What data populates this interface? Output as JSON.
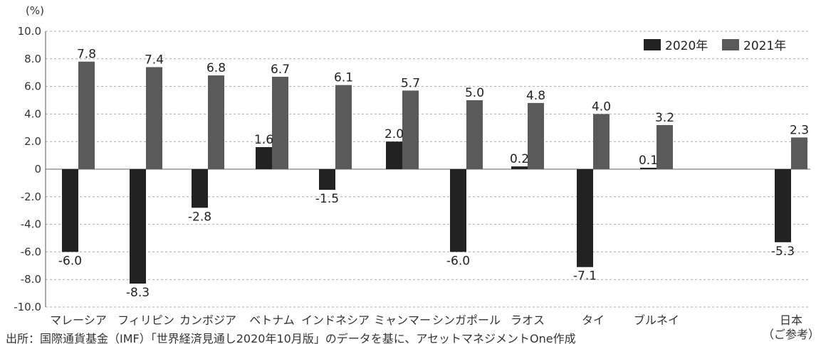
{
  "chart_data": {
    "type": "bar",
    "ylabel": "(%)",
    "ylim": [
      -10,
      10
    ],
    "yticks": [
      "10.0",
      "8.0",
      "6.0",
      "4.0",
      "2.0",
      "0",
      "-2.0",
      "-4.0",
      "-6.0",
      "-8.0",
      "-10.0"
    ],
    "yvalues": [
      10,
      8,
      6,
      4,
      2,
      0,
      -2,
      -4,
      -6,
      -8,
      -10
    ],
    "grid": true,
    "legend_position": "top-right",
    "categories": [
      {
        "label": "マレーシア",
        "sub": ""
      },
      {
        "label": "フィリピン",
        "sub": ""
      },
      {
        "label": "カンボジア",
        "sub": ""
      },
      {
        "label": "ベトナム",
        "sub": ""
      },
      {
        "label": "インドネシア",
        "sub": ""
      },
      {
        "label": "ミャンマー",
        "sub": ""
      },
      {
        "label": "シンガポール",
        "sub": ""
      },
      {
        "label": "ラオス",
        "sub": ""
      },
      {
        "label": "タイ",
        "sub": ""
      },
      {
        "label": "ブルネイ",
        "sub": ""
      },
      {
        "label": "日本",
        "sub": "（ご参考）"
      }
    ],
    "series": [
      {
        "name": "2020年",
        "color": "#222222",
        "values": [
          -6.0,
          -8.3,
          -2.8,
          1.6,
          -1.5,
          2.0,
          -6.0,
          0.2,
          -7.1,
          0.1,
          -5.3
        ],
        "labels": [
          "-6.0",
          "-8.3",
          "-2.8",
          "1.6",
          "-1.5",
          "2.0",
          "-6.0",
          "0.2",
          "-7.1",
          "0.1",
          "-5.3"
        ]
      },
      {
        "name": "2021年",
        "color": "#5a5a5a",
        "values": [
          7.8,
          7.4,
          6.8,
          6.7,
          6.1,
          5.7,
          5.0,
          4.8,
          4.0,
          3.2,
          2.3
        ],
        "labels": [
          "7.8",
          "7.4",
          "6.8",
          "6.7",
          "6.1",
          "5.7",
          "5.0",
          "4.8",
          "4.0",
          "3.2",
          "2.3"
        ]
      }
    ]
  },
  "source": "出所：国際通貨基金（IMF）「世界経済見通し2020年10月版」のデータを基に、アセットマネジメントOne作成"
}
